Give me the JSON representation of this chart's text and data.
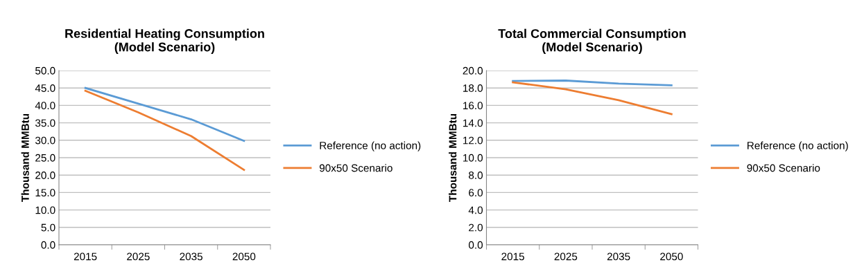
{
  "chart_data": [
    {
      "type": "line",
      "title": "Residential Heating Consumption\n(Model Scenario)",
      "ylabel": "Thousand MMBtu",
      "categories": [
        "2015",
        "2025",
        "2035",
        "2050"
      ],
      "series": [
        {
          "name": "Reference (no action)",
          "color": "#5b9bd5",
          "values": [
            45.0,
            40.5,
            36.0,
            29.8
          ]
        },
        {
          "name": "90x50 Scenario",
          "color": "#ed7d31",
          "values": [
            44.2,
            38.0,
            31.2,
            21.5
          ]
        }
      ],
      "ylim": [
        0,
        50
      ],
      "yticks": [
        {
          "value": 0,
          "label": "0.0"
        },
        {
          "value": 5,
          "label": "5.0"
        },
        {
          "value": 10,
          "label": "10.0"
        },
        {
          "value": 15,
          "label": "15.0"
        },
        {
          "value": 20,
          "label": "20.0"
        },
        {
          "value": 25,
          "label": "25.0"
        },
        {
          "value": 30,
          "label": "30.0"
        },
        {
          "value": 35,
          "label": "35.0"
        },
        {
          "value": 40,
          "label": "40.0"
        },
        {
          "value": 45,
          "label": "45.0"
        },
        {
          "value": 50,
          "label": "50.0"
        }
      ],
      "grid": "y",
      "legend": "right",
      "marker": "none",
      "line_style": "solid"
    },
    {
      "type": "line",
      "title": "Total Commercial Consumption\n(Model Scenario)",
      "ylabel": "Thousand MMBtu",
      "categories": [
        "2015",
        "2025",
        "2035",
        "2050"
      ],
      "series": [
        {
          "name": "Reference (no action)",
          "color": "#5b9bd5",
          "values": [
            18.8,
            18.85,
            18.5,
            18.3
          ]
        },
        {
          "name": "90x50 Scenario",
          "color": "#ed7d31",
          "values": [
            18.65,
            17.85,
            16.6,
            15.0
          ]
        }
      ],
      "ylim": [
        0,
        20
      ],
      "yticks": [
        {
          "value": 0,
          "label": "0.0"
        },
        {
          "value": 2,
          "label": "2.0"
        },
        {
          "value": 4,
          "label": "4.0"
        },
        {
          "value": 6,
          "label": "6.0"
        },
        {
          "value": 8,
          "label": "8.0"
        },
        {
          "value": 10,
          "label": "10.0"
        },
        {
          "value": 12,
          "label": "12.0"
        },
        {
          "value": 14,
          "label": "14.0"
        },
        {
          "value": 16,
          "label": "16.0"
        },
        {
          "value": 18,
          "label": "18.0"
        },
        {
          "value": 20,
          "label": "20.0"
        }
      ],
      "grid": "y",
      "legend": "right",
      "marker": "none",
      "line_style": "solid"
    }
  ]
}
